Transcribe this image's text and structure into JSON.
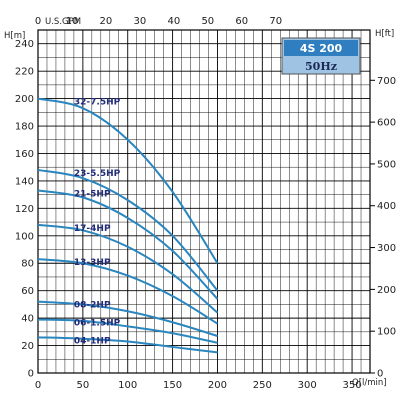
{
  "chart_data": {
    "type": "line",
    "model_box": {
      "model": "4S 200",
      "frequency": "50Hz"
    },
    "axes": {
      "left": {
        "label": "H[m]",
        "ticks": [
          "0",
          "20",
          "40",
          "60",
          "80",
          "100",
          "120",
          "140",
          "160",
          "180",
          "200",
          "220",
          "240"
        ],
        "range": [
          0,
          250
        ]
      },
      "bottom": {
        "label": "Q[l/min]",
        "ticks": [
          "0",
          "50",
          "100",
          "150",
          "200",
          "250",
          "300",
          "350"
        ],
        "range": [
          0,
          370
        ]
      },
      "top": {
        "label": "U.S.GPM",
        "ticks": [
          "0",
          "10",
          "20",
          "30",
          "40",
          "50",
          "60",
          "70"
        ]
      },
      "right": {
        "label": "H[ft]",
        "ticks": [
          "0",
          "100",
          "200",
          "300",
          "400",
          "500",
          "600",
          "700"
        ]
      }
    },
    "grid": true,
    "series": [
      {
        "name": "32-7.5HP",
        "x": [
          0,
          50,
          100,
          150,
          200
        ],
        "y": [
          200,
          193,
          170,
          132,
          80
        ]
      },
      {
        "name": "23-5.5HP",
        "x": [
          0,
          50,
          100,
          150,
          200
        ],
        "y": [
          148,
          142,
          126,
          100,
          60
        ]
      },
      {
        "name": "21-5HP",
        "x": [
          0,
          50,
          100,
          150,
          200
        ],
        "y": [
          133,
          128,
          113,
          89,
          54
        ]
      },
      {
        "name": "17-4HP",
        "x": [
          0,
          50,
          100,
          150,
          200
        ],
        "y": [
          108,
          104,
          92,
          72,
          44
        ]
      },
      {
        "name": "13-3HP",
        "x": [
          0,
          50,
          100,
          150,
          200
        ],
        "y": [
          83,
          80,
          71,
          56,
          36
        ]
      },
      {
        "name": "08-2HP",
        "x": [
          0,
          50,
          100,
          150,
          200
        ],
        "y": [
          52,
          50,
          45,
          37,
          27
        ]
      },
      {
        "name": "06-1.5HP",
        "x": [
          0,
          50,
          100,
          150,
          200
        ],
        "y": [
          39,
          38,
          34,
          29,
          22
        ]
      },
      {
        "name": "04-1HP",
        "x": [
          0,
          50,
          100,
          150,
          200
        ],
        "y": [
          26,
          25,
          23,
          19,
          15
        ]
      }
    ]
  }
}
